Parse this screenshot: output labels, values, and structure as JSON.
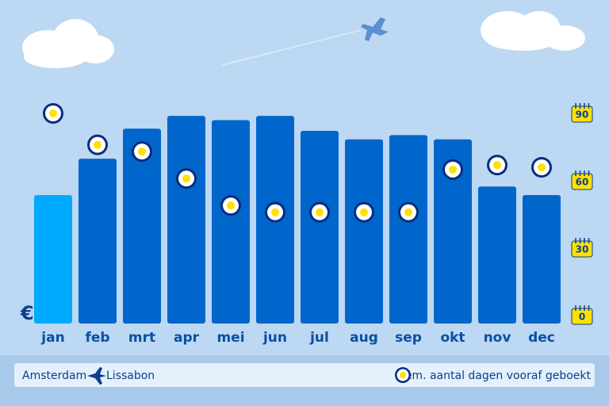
{
  "chart_data": {
    "type": "bar",
    "currency": "€",
    "route": {
      "from": "Amsterdam",
      "to": "Lissabon"
    },
    "categories": [
      "jan",
      "feb",
      "mrt",
      "apr",
      "mei",
      "jun",
      "jul",
      "aug",
      "sep",
      "okt",
      "nov",
      "dec"
    ],
    "series": [
      {
        "values": [
          60,
          77,
          91,
          97,
          95,
          97,
          90,
          86,
          88,
          86,
          64,
          60
        ],
        "colors": [
          "#00aaff",
          "#0066cc",
          "#0066cc",
          "#0066cc",
          "#0066cc",
          "#0066cc",
          "#0066cc",
          "#0066cc",
          "#0066cc",
          "#0066cc",
          "#0066cc",
          "#0066cc"
        ]
      },
      {
        "name": "Gem. aantal dagen vooraf geboekt",
        "type": "scatter",
        "axis": "y2",
        "color": "#ffe100",
        "values": [
          90,
          76,
          73,
          61,
          49,
          46,
          46,
          46,
          46,
          65,
          67,
          66
        ]
      }
    ],
    "ylim": [
      0,
      100
    ],
    "y2lim": [
      0,
      90
    ],
    "y2ticks": [
      0,
      30,
      60,
      90
    ]
  }
}
